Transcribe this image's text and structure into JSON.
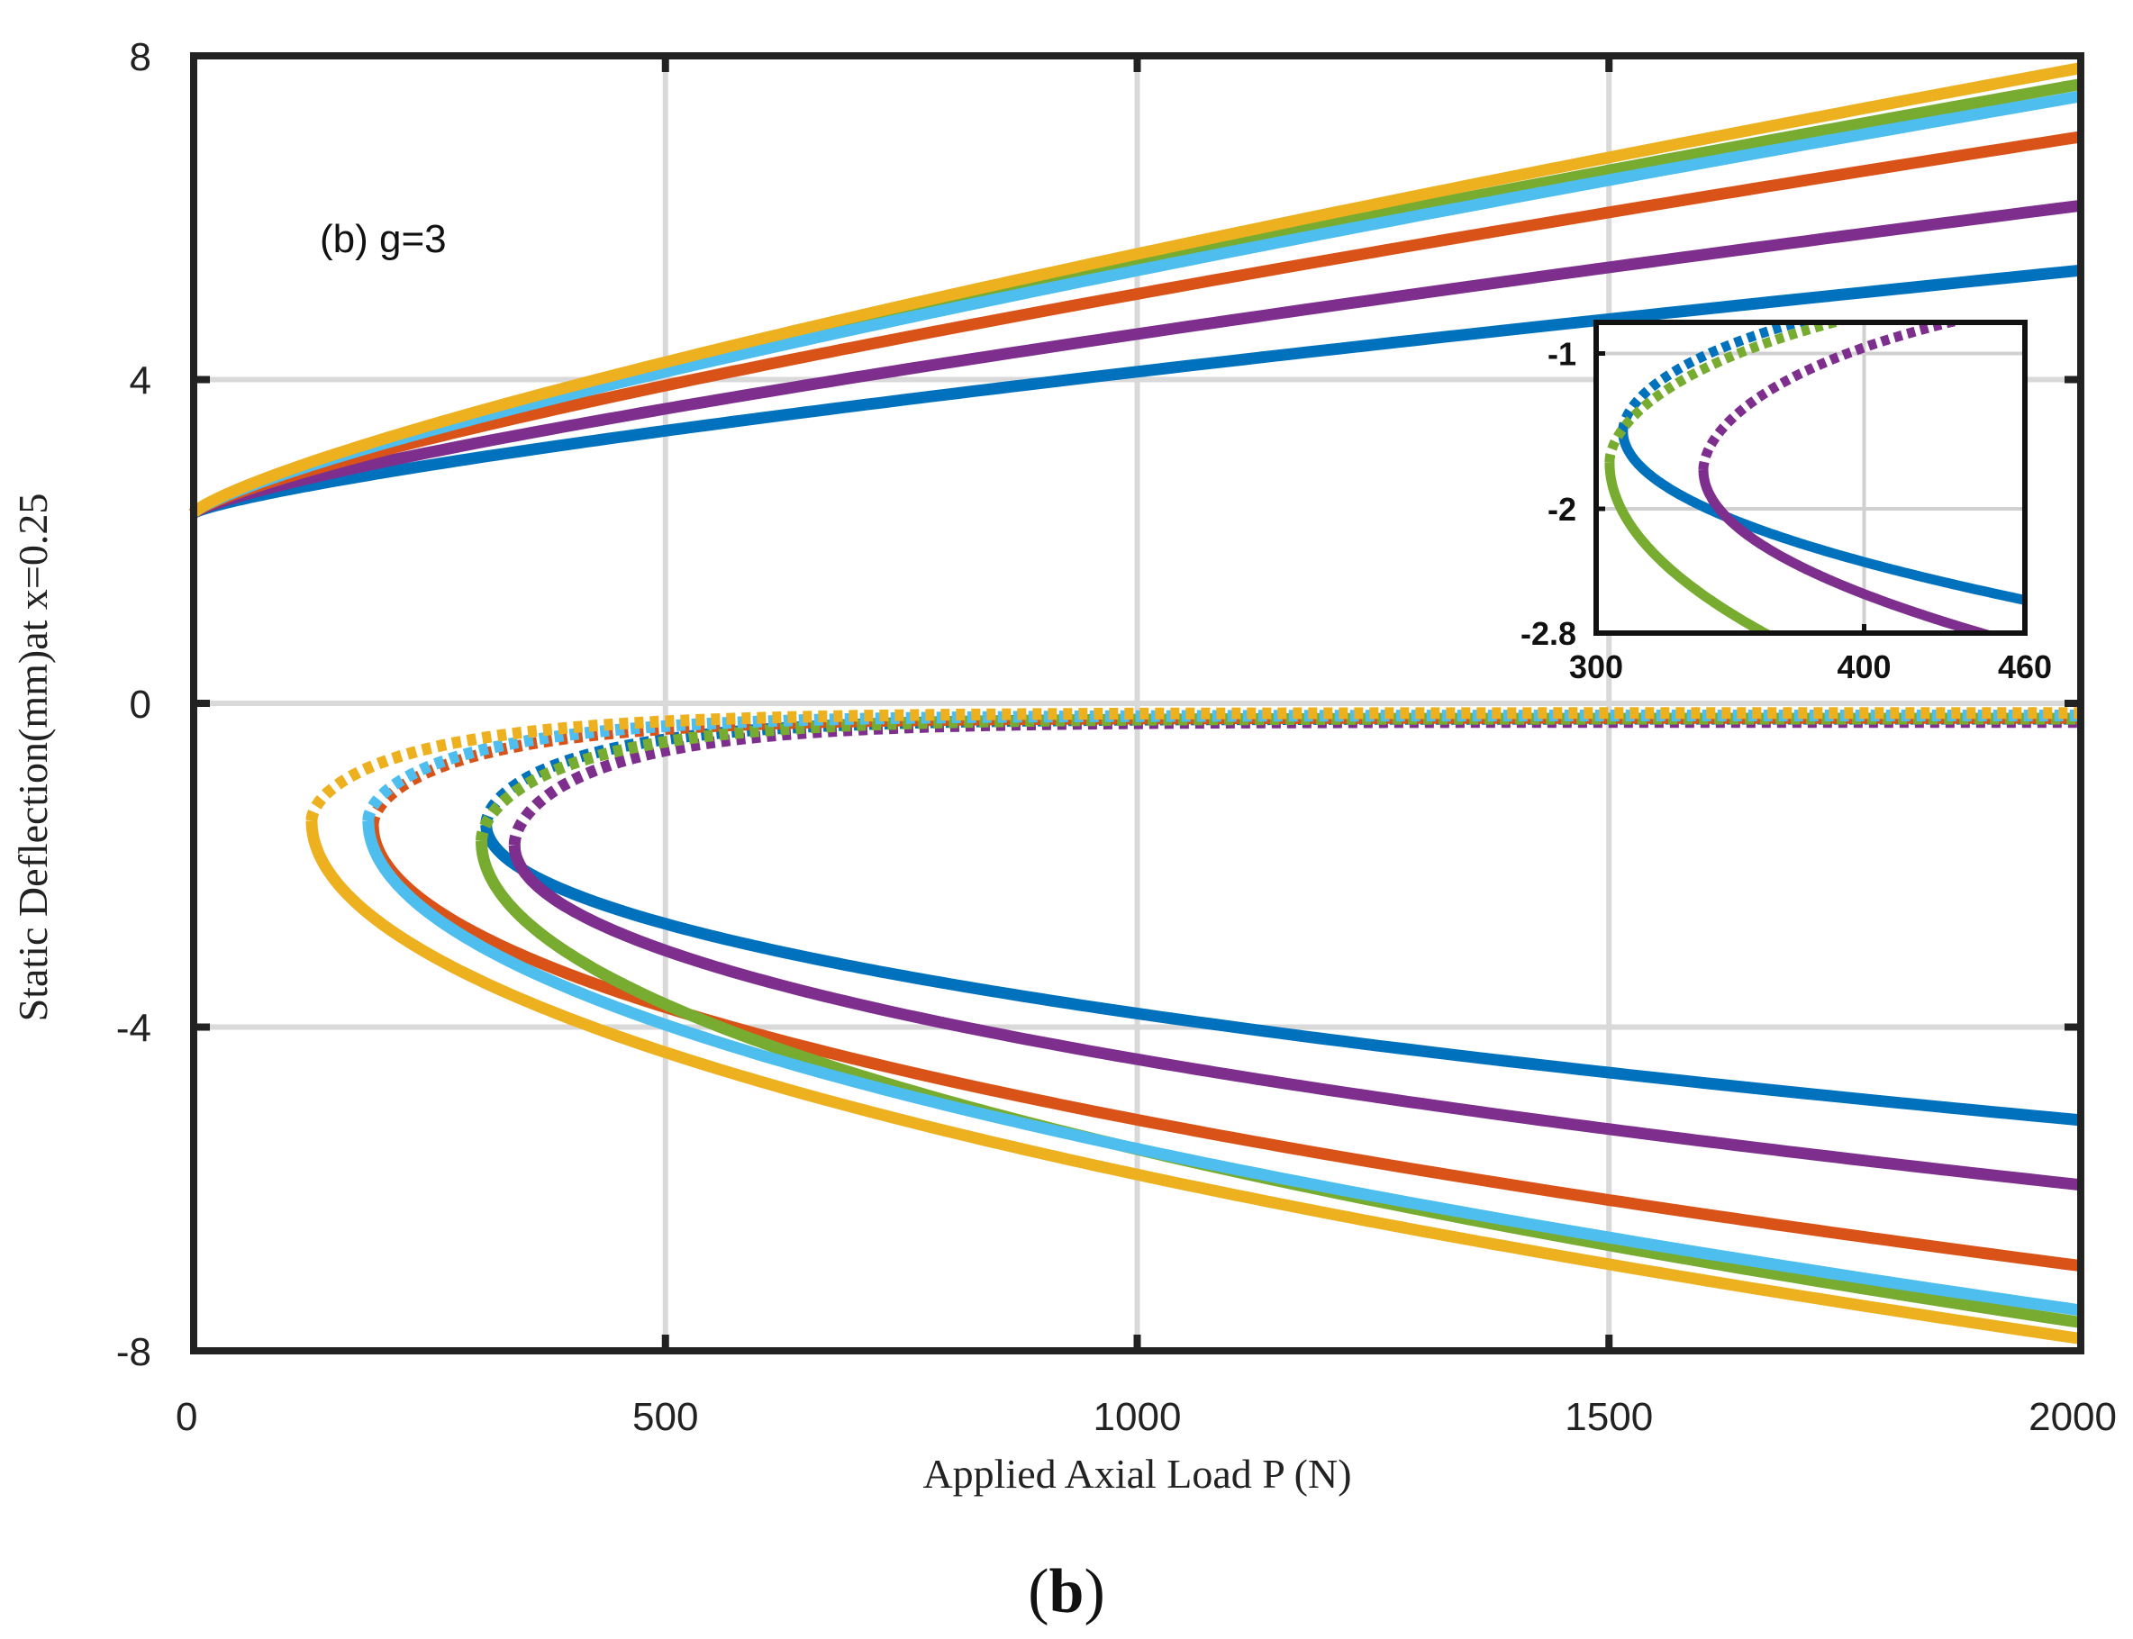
{
  "chart_data": {
    "type": "line",
    "title": "",
    "annotation": "(b) g=3",
    "caption_open": "(",
    "caption_letter": "b",
    "caption_close": ")",
    "xlabel": "Applied Axial Load P (N)",
    "ylabel": "Static Deflection(mm)at x=0.25",
    "xlim": [
      0,
      2000
    ],
    "ylim": [
      -8,
      8
    ],
    "xticks": [
      0,
      500,
      1000,
      1500,
      2000
    ],
    "xtick_labels": [
      "0",
      "500",
      "1000",
      "1500",
      "2000"
    ],
    "yticks": [
      8,
      4,
      0,
      -4,
      -8
    ],
    "ytick_labels": [
      "8",
      "4",
      "0",
      "-4",
      "-8"
    ],
    "grid": true,
    "series": [
      {
        "name": "blue",
        "color": "#0072BD",
        "y0": 2.35,
        "upper_end": 5.35,
        "p_turn": 310,
        "y_turn": -1.5,
        "lower_end": -5.15,
        "stable_end": -0.19
      },
      {
        "name": "purple",
        "color": "#7E2F8E",
        "y0": 2.35,
        "upper_end": 6.15,
        "p_turn": 340,
        "y_turn": -1.75,
        "lower_end": -5.95,
        "stable_end": -0.23
      },
      {
        "name": "orange",
        "color": "#D95319",
        "y0": 2.35,
        "upper_end": 7.0,
        "p_turn": 190,
        "y_turn": -1.5,
        "lower_end": -6.95,
        "stable_end": -0.18
      },
      {
        "name": "green",
        "color": "#77AC30",
        "y0": 2.35,
        "upper_end": 7.65,
        "p_turn": 305,
        "y_turn": -1.7,
        "lower_end": -7.65,
        "stable_end": -0.19
      },
      {
        "name": "light-blue",
        "color": "#4DBEEE",
        "y0": 2.35,
        "upper_end": 7.5,
        "p_turn": 185,
        "y_turn": -1.45,
        "lower_end": -7.5,
        "stable_end": -0.15
      },
      {
        "name": "yellow",
        "color": "#EDB120",
        "y0": 2.35,
        "upper_end": 7.85,
        "p_turn": 125,
        "y_turn": -1.45,
        "lower_end": -7.85,
        "stable_end": -0.12
      }
    ],
    "inset": {
      "xlim": [
        300,
        460
      ],
      "ylim": [
        -2.8,
        -0.8
      ],
      "xticks": [
        300,
        400,
        460
      ],
      "xtick_labels": [
        "300",
        "400",
        "460"
      ],
      "yticks": [
        -1,
        -2,
        -2.8
      ],
      "ytick_labels": [
        "-1",
        "-2",
        "-2.8"
      ]
    }
  }
}
